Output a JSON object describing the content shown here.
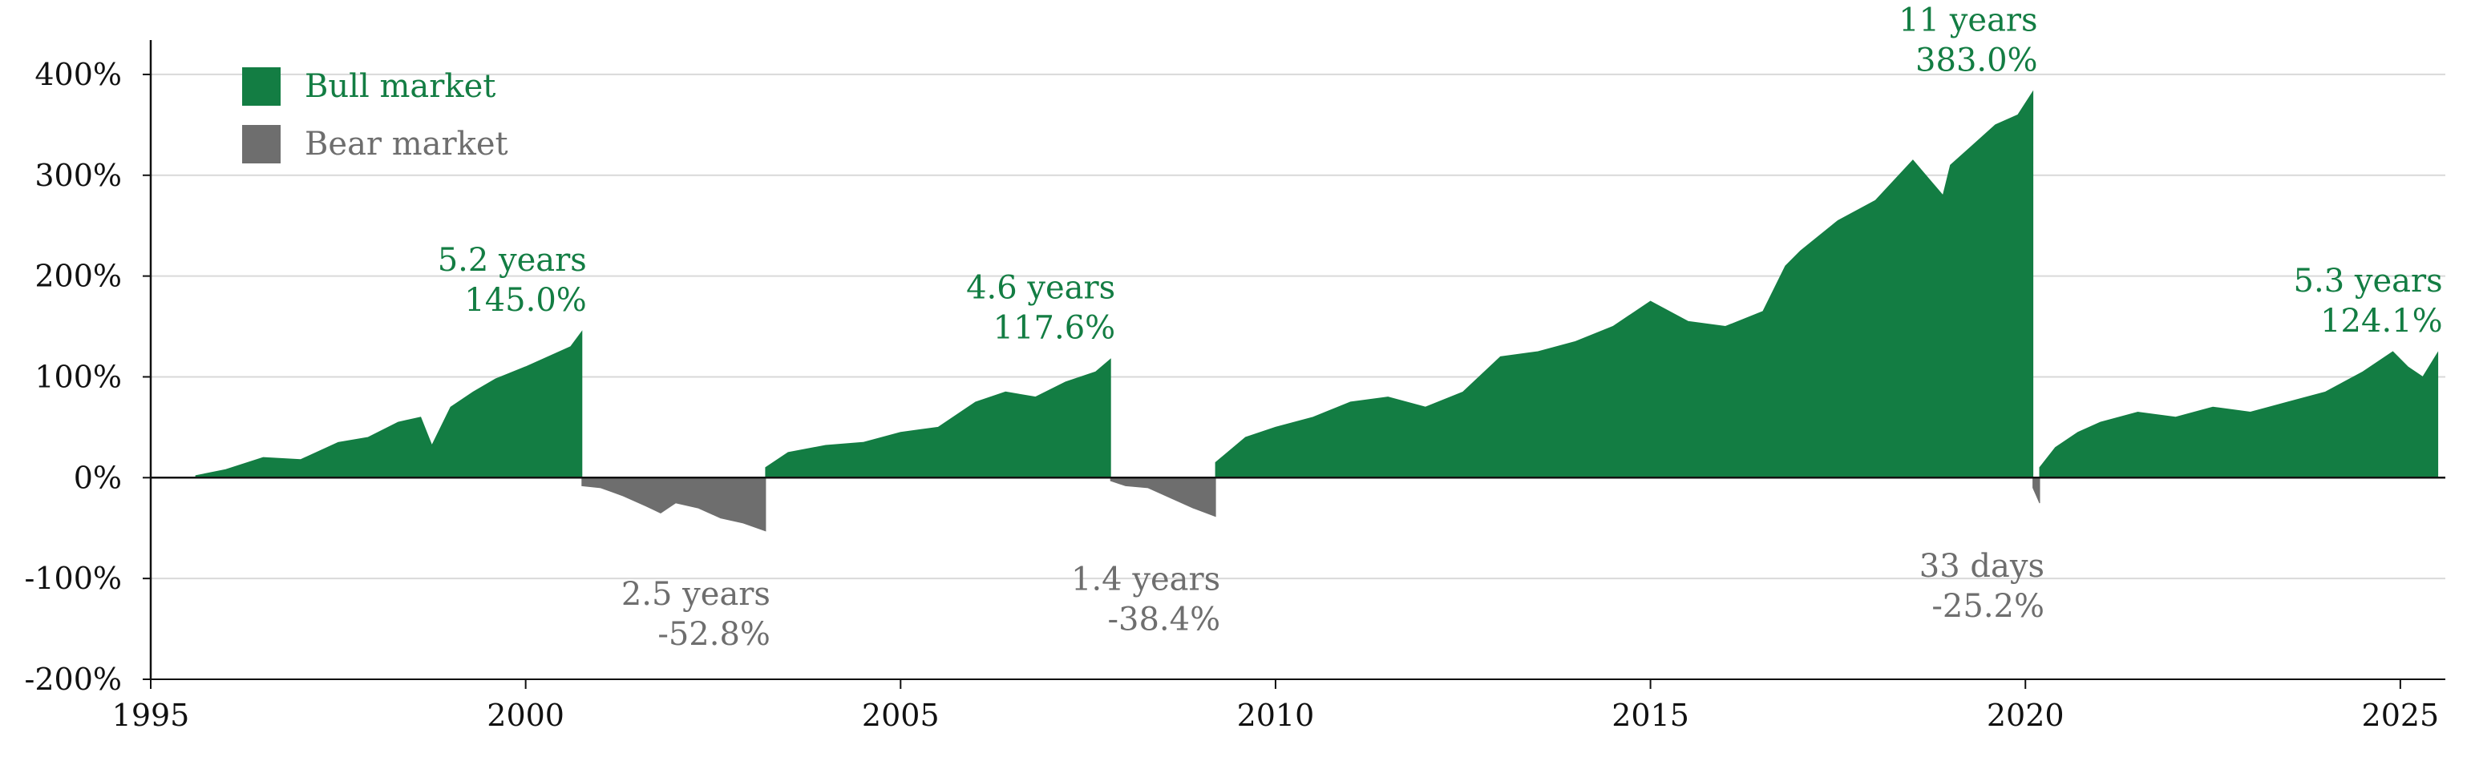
{
  "chart_data": {
    "type": "area",
    "title": "",
    "xlabel": "",
    "ylabel": "",
    "xlim": [
      1995,
      2025.6
    ],
    "ylim": [
      -200,
      450
    ],
    "x_ticks": [
      1995,
      2000,
      2005,
      2010,
      2015,
      2020,
      2025
    ],
    "y_ticks": [
      {
        "value": 400,
        "label": "400%"
      },
      {
        "value": 300,
        "label": "300%"
      },
      {
        "value": 200,
        "label": "200%"
      },
      {
        "value": 100,
        "label": "100%"
      },
      {
        "value": 0,
        "label": "0%"
      },
      {
        "value": -100,
        "label": "-100%"
      },
      {
        "value": -200,
        "label": "-200%"
      }
    ],
    "grid": "horizontal",
    "legend": {
      "placement": "top-left",
      "items": [
        {
          "label": "Bull market",
          "color": "#137D43"
        },
        {
          "label": "Bear market",
          "color": "#6E6E6E"
        }
      ]
    },
    "colors": {
      "bull": "#137D43",
      "bear": "#6E6E6E"
    },
    "series": [
      {
        "kind": "bull",
        "x": [
          1995.6,
          1996.0,
          1996.5,
          1997.0,
          1997.5,
          1997.9,
          1998.3,
          1998.6,
          1998.75,
          1999.0,
          1999.3,
          1999.6,
          2000.0,
          2000.3,
          2000.6,
          2000.75
        ],
        "y": [
          2,
          8,
          20,
          18,
          35,
          40,
          55,
          60,
          32,
          70,
          85,
          98,
          110,
          120,
          130,
          145
        ]
      },
      {
        "kind": "bear",
        "x": [
          2000.75,
          2001.0,
          2001.3,
          2001.6,
          2001.8,
          2002.0,
          2002.3,
          2002.6,
          2002.9,
          2003.2
        ],
        "y": [
          -8,
          -10,
          -18,
          -28,
          -35,
          -25,
          -30,
          -40,
          -45,
          -52.8
        ]
      },
      {
        "kind": "bull",
        "x": [
          2003.2,
          2003.5,
          2004.0,
          2004.5,
          2005.0,
          2005.5,
          2006.0,
          2006.4,
          2006.8,
          2007.2,
          2007.6,
          2007.8
        ],
        "y": [
          10,
          25,
          32,
          35,
          45,
          50,
          75,
          85,
          80,
          95,
          105,
          117.6
        ]
      },
      {
        "kind": "bear",
        "x": [
          2007.8,
          2008.0,
          2008.3,
          2008.6,
          2008.9,
          2009.2
        ],
        "y": [
          -3,
          -8,
          -10,
          -20,
          -30,
          -38.4
        ]
      },
      {
        "kind": "bull",
        "x": [
          2009.2,
          2009.6,
          2010.0,
          2010.5,
          2011.0,
          2011.5,
          2012.0,
          2012.5,
          2013.0,
          2013.5,
          2014.0,
          2014.5,
          2015.0,
          2015.5,
          2016.0,
          2016.5,
          2016.8,
          2017.0,
          2017.5,
          2018.0,
          2018.5,
          2018.9,
          2019.0,
          2019.3,
          2019.6,
          2019.9,
          2020.1
        ],
        "y": [
          15,
          40,
          50,
          60,
          75,
          80,
          70,
          85,
          120,
          125,
          135,
          150,
          175,
          155,
          150,
          165,
          210,
          225,
          255,
          275,
          315,
          280,
          310,
          330,
          350,
          360,
          383.0
        ]
      },
      {
        "kind": "bear",
        "x": [
          2020.1,
          2020.19
        ],
        "y": [
          -10,
          -25.2
        ]
      },
      {
        "kind": "bull",
        "x": [
          2020.19,
          2020.4,
          2020.7,
          2021.0,
          2021.5,
          2022.0,
          2022.5,
          2023.0,
          2023.5,
          2024.0,
          2024.5,
          2024.9,
          2025.1,
          2025.3,
          2025.5
        ],
        "y": [
          10,
          30,
          45,
          55,
          65,
          60,
          70,
          65,
          75,
          85,
          105,
          125,
          110,
          100,
          124.1
        ]
      }
    ],
    "annotations": [
      {
        "kind": "bull",
        "duration": "5.2 years",
        "change": "145.0%",
        "x": 2000.75,
        "y": 145.0,
        "position": "above-left"
      },
      {
        "kind": "bear",
        "duration": "2.5 years",
        "change": "-52.8%",
        "x": 2003.2,
        "y": -52.8,
        "position": "below-left"
      },
      {
        "kind": "bull",
        "duration": "4.6 years",
        "change": "117.6%",
        "x": 2007.8,
        "y": 117.6,
        "position": "above-left"
      },
      {
        "kind": "bear",
        "duration": "1.4 years",
        "change": "-38.4%",
        "x": 2009.2,
        "y": -38.4,
        "position": "below-left"
      },
      {
        "kind": "bull",
        "duration": "11 years",
        "change": "383.0%",
        "x": 2020.1,
        "y": 383.0,
        "position": "above-left"
      },
      {
        "kind": "bear",
        "duration": "33 days",
        "change": "-25.2%",
        "x": 2020.19,
        "y": -25.2,
        "position": "below-left"
      },
      {
        "kind": "bull",
        "duration": "5.3 years",
        "change": "124.1%",
        "x": 2025.5,
        "y": 124.1,
        "position": "above-left"
      }
    ]
  }
}
